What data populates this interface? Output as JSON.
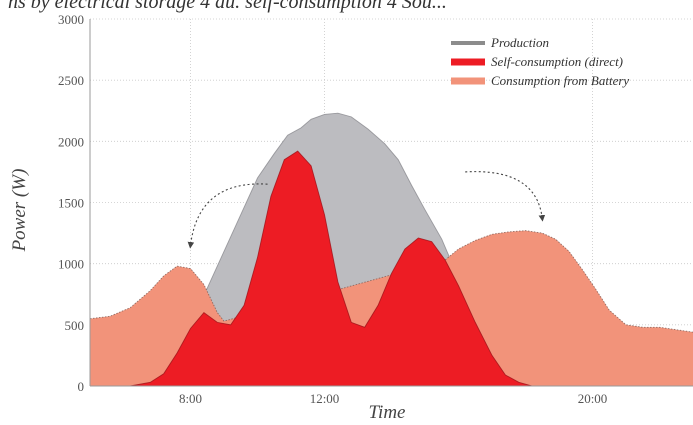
{
  "top_text": "ns by electrical storage 4 au. self-consumption 4 Sou...",
  "chart_data": {
    "type": "area",
    "xlabel": "Time",
    "ylabel": "Power (W)",
    "xlim": [
      5,
      23
    ],
    "ylim": [
      0,
      3000
    ],
    "yticks": [
      0,
      500,
      1000,
      1500,
      2000,
      2500,
      3000
    ],
    "xticks": [
      {
        "value": 8,
        "label": "8:00"
      },
      {
        "value": 12,
        "label": "12:00"
      },
      {
        "value": 20,
        "label": "20:00"
      }
    ],
    "grid": true,
    "legend_position": "top-right",
    "series": [
      {
        "name": "Production",
        "color": "#bcbcc0",
        "x": [
          5,
          6.2,
          6.8,
          7.2,
          7.6,
          8.0,
          8.5,
          9.0,
          9.5,
          10.0,
          10.5,
          10.9,
          11.3,
          11.6,
          12.0,
          12.4,
          12.8,
          13.3,
          13.8,
          14.2,
          14.6,
          15.0,
          15.5,
          16.0,
          16.5,
          17.0,
          17.4,
          17.8,
          18.2,
          23
        ],
        "values": [
          0,
          0,
          30,
          100,
          270,
          500,
          800,
          1100,
          1400,
          1700,
          1900,
          2050,
          2110,
          2180,
          2220,
          2230,
          2200,
          2100,
          1980,
          1850,
          1640,
          1440,
          1200,
          880,
          550,
          280,
          120,
          40,
          0,
          0
        ]
      },
      {
        "name": "Self-consumption (direct)",
        "color": "#ed1c24",
        "x": [
          5,
          6.2,
          6.8,
          7.2,
          7.6,
          8.0,
          8.4,
          8.8,
          9.2,
          9.6,
          10.0,
          10.4,
          10.8,
          11.2,
          11.6,
          12.0,
          12.4,
          12.8,
          13.2,
          13.6,
          14.0,
          14.4,
          14.8,
          15.2,
          15.6,
          16.0,
          16.5,
          17.0,
          17.4,
          17.8,
          18.2,
          23
        ],
        "values": [
          0,
          0,
          30,
          100,
          270,
          470,
          600,
          520,
          500,
          660,
          1050,
          1550,
          1850,
          1920,
          1800,
          1400,
          850,
          520,
          480,
          660,
          920,
          1120,
          1210,
          1180,
          1030,
          820,
          520,
          250,
          90,
          30,
          0,
          0
        ]
      },
      {
        "name": "Consumption from Battery",
        "color": "#f2937a",
        "x": [
          5,
          5.6,
          6.2,
          6.8,
          7.2,
          7.6,
          8.0,
          8.4,
          8.8,
          9.0,
          15.6,
          16.0,
          16.5,
          17.0,
          17.5,
          18.0,
          18.5,
          18.9,
          19.3,
          19.7,
          20.1,
          20.5,
          21.0,
          21.5,
          22.0,
          22.5,
          23
        ],
        "values": [
          550,
          570,
          640,
          780,
          900,
          980,
          960,
          830,
          600,
          530,
          1030,
          1120,
          1190,
          1240,
          1260,
          1270,
          1250,
          1200,
          1100,
          950,
          790,
          620,
          500,
          480,
          480,
          460,
          440
        ]
      }
    ],
    "annotations": [
      {
        "type": "arrow",
        "style": "dotted",
        "from": [
          10.3,
          1650
        ],
        "to": [
          8.0,
          1150
        ]
      },
      {
        "type": "arrow",
        "style": "dotted",
        "from": [
          16.2,
          1750
        ],
        "to": [
          18.5,
          1370
        ]
      }
    ]
  }
}
